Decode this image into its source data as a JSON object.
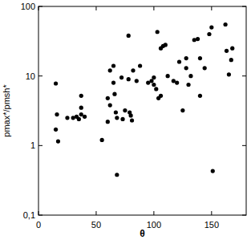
{
  "chart_data": {
    "type": "scatter",
    "x_label": "θ",
    "y_label": "pmax*/pmsh*",
    "log": "y",
    "color": "#000000",
    "marker": "circle",
    "xlim": [
      0,
      180
    ],
    "xticks": [
      0,
      50,
      100,
      150
    ],
    "ylim": [
      0.1,
      100
    ],
    "yticks": [
      {
        "value": 0.1,
        "label": "0,1"
      },
      1,
      10,
      100
    ],
    "x": [
      15,
      15,
      16,
      17,
      25,
      30,
      33,
      35,
      37,
      37,
      37,
      40,
      55,
      60,
      60,
      62,
      62,
      65,
      65,
      66,
      67,
      68,
      68,
      72,
      73,
      75,
      78,
      78,
      79,
      80,
      81,
      82,
      85,
      88,
      95,
      98,
      100,
      100,
      102,
      103,
      104,
      106,
      106,
      108,
      110,
      112,
      117,
      120,
      122,
      125,
      128,
      128,
      130,
      132,
      135,
      138,
      140,
      140,
      144,
      148,
      150,
      151,
      162,
      163,
      165,
      167,
      168
    ],
    "values": [
      7.8,
      1.7,
      2.8,
      1.15,
      2.5,
      2.5,
      2.6,
      2.4,
      5.2,
      3.5,
      2.8,
      2.6,
      1.2,
      2.2,
      4.8,
      3.8,
      12,
      14,
      8,
      5.5,
      3.0,
      2.5,
      0.38,
      9.5,
      2.4,
      3.2,
      9,
      38,
      3,
      2.7,
      2.3,
      12,
      8.5,
      14,
      8,
      8.5,
      9.5,
      7.5,
      6.5,
      43,
      4.8,
      5.2,
      25,
      27,
      28,
      10,
      8.5,
      8,
      16,
      3.2,
      18,
      13,
      7.5,
      10,
      33,
      34,
      18,
      5.2,
      13,
      40,
      50,
      0.43,
      55,
      23,
      10.5,
      17,
      25
    ]
  }
}
